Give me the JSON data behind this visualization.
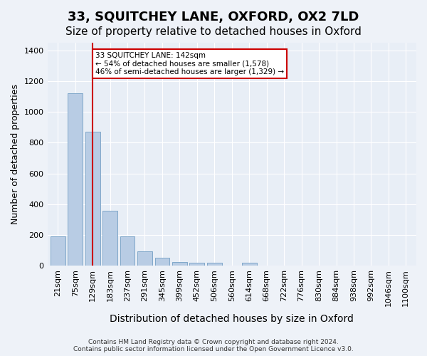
{
  "title": "33, SQUITCHEY LANE, OXFORD, OX2 7LD",
  "subtitle": "Size of property relative to detached houses in Oxford",
  "xlabel": "Distribution of detached houses by size in Oxford",
  "ylabel": "Number of detached properties",
  "bin_labels": [
    "21sqm",
    "75sqm",
    "129sqm",
    "183sqm",
    "237sqm",
    "291sqm",
    "345sqm",
    "399sqm",
    "452sqm",
    "506sqm",
    "560sqm",
    "614sqm",
    "668sqm",
    "722sqm",
    "776sqm",
    "830sqm",
    "884sqm",
    "938sqm",
    "992sqm",
    "1046sqm",
    "1100sqm"
  ],
  "values": [
    190,
    1120,
    870,
    355,
    190,
    95,
    50,
    25,
    20,
    20,
    0,
    20,
    0,
    0,
    0,
    0,
    0,
    0,
    0,
    0,
    0
  ],
  "bar_color": "#b8cce4",
  "bar_edge_color": "#7fa7c9",
  "vline_x": 2.0,
  "vline_color": "#cc0000",
  "annotation_text": "33 SQUITCHEY LANE: 142sqm\n← 54% of detached houses are smaller (1,578)\n46% of semi-detached houses are larger (1,329) →",
  "annotation_box_color": "#ffffff",
  "annotation_box_edge": "#cc0000",
  "ylim": [
    0,
    1450
  ],
  "yticks": [
    0,
    200,
    400,
    600,
    800,
    1000,
    1200,
    1400
  ],
  "plot_bg_color": "#e8eef6",
  "fig_bg_color": "#eef2f8",
  "footer": "Contains HM Land Registry data © Crown copyright and database right 2024.\nContains public sector information licensed under the Open Government Licence v3.0.",
  "title_fontsize": 13,
  "subtitle_fontsize": 11,
  "xlabel_fontsize": 10,
  "ylabel_fontsize": 9,
  "tick_fontsize": 8
}
